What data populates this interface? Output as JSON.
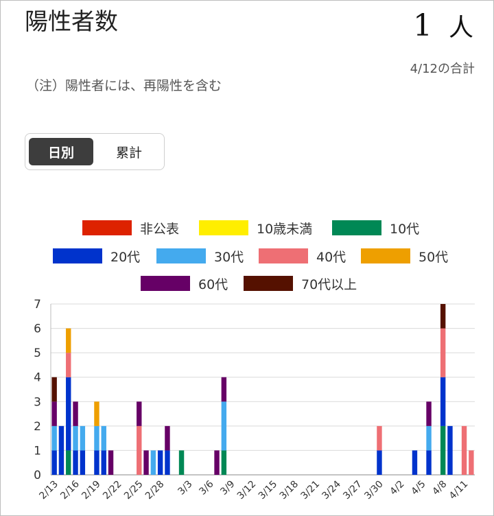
{
  "header": {
    "title": "陽性者数",
    "count": "1",
    "unit": "人",
    "total_label": "4/12の合計",
    "note": "（注）陽性者には、再陽性を含む"
  },
  "toggle": {
    "daily": "日別",
    "cumulative": "累計",
    "selected": "daily"
  },
  "colors": {
    "非公表": "#dd2200",
    "10歳未満": "#ffee00",
    "10代": "#008855",
    "20代": "#0033cc",
    "30代": "#44aaee",
    "40代": "#ee6f74",
    "50代": "#ee9f00",
    "60代": "#660066",
    "70代以上": "#551100"
  },
  "chart_data": {
    "type": "bar",
    "stacked": true,
    "ylim": [
      0,
      7
    ],
    "yticks": [
      "0",
      "1",
      "2",
      "3",
      "4",
      "5",
      "6",
      "7"
    ],
    "grid": true,
    "legend_position": "top",
    "x_tick_labels": [
      "2/13",
      "2/16",
      "2/19",
      "2/22",
      "2/25",
      "2/28",
      "3/3",
      "3/6",
      "3/9",
      "3/12",
      "3/15",
      "3/18",
      "3/21",
      "3/24",
      "3/27",
      "3/30",
      "4/2",
      "4/5",
      "4/8",
      "4/11"
    ],
    "categories": [
      "2/13",
      "2/14",
      "2/15",
      "2/16",
      "2/17",
      "2/18",
      "2/19",
      "2/20",
      "2/21",
      "2/22",
      "2/23",
      "2/24",
      "2/25",
      "2/26",
      "2/27",
      "2/28",
      "2/29",
      "3/1",
      "3/2",
      "3/3",
      "3/4",
      "3/5",
      "3/6",
      "3/7",
      "3/8",
      "3/9",
      "3/10",
      "3/11",
      "3/12",
      "3/13",
      "3/14",
      "3/15",
      "3/16",
      "3/17",
      "3/18",
      "3/19",
      "3/20",
      "3/21",
      "3/22",
      "3/23",
      "3/24",
      "3/25",
      "3/26",
      "3/27",
      "3/28",
      "3/29",
      "3/30",
      "3/31",
      "4/1",
      "4/2",
      "4/3",
      "4/4",
      "4/5",
      "4/6",
      "4/7",
      "4/8",
      "4/9",
      "4/10",
      "4/11",
      "4/12"
    ],
    "series": [
      {
        "name": "非公表",
        "values": [
          0,
          0,
          0,
          0,
          0,
          0,
          0,
          0,
          0,
          0,
          0,
          0,
          0,
          0,
          0,
          0,
          0,
          0,
          0,
          0,
          0,
          0,
          0,
          0,
          0,
          0,
          0,
          0,
          0,
          0,
          0,
          0,
          0,
          0,
          0,
          0,
          0,
          0,
          0,
          0,
          0,
          0,
          0,
          0,
          0,
          0,
          0,
          0,
          0,
          0,
          0,
          0,
          0,
          0,
          0,
          0,
          0,
          0,
          0,
          0
        ]
      },
      {
        "name": "10歳未満",
        "values": [
          0,
          0,
          0,
          0,
          0,
          0,
          0,
          0,
          0,
          0,
          0,
          0,
          0,
          0,
          0,
          0,
          0,
          0,
          0,
          0,
          0,
          0,
          0,
          0,
          0,
          0,
          0,
          0,
          0,
          0,
          0,
          0,
          0,
          0,
          0,
          0,
          0,
          0,
          0,
          0,
          0,
          0,
          0,
          0,
          0,
          0,
          0,
          0,
          0,
          0,
          0,
          0,
          0,
          0,
          0,
          0,
          0,
          0,
          0,
          0
        ]
      },
      {
        "name": "10代",
        "values": [
          0,
          0,
          1,
          0,
          0,
          0,
          0,
          0,
          0,
          0,
          0,
          0,
          0,
          0,
          0,
          0,
          0,
          0,
          1,
          0,
          0,
          0,
          0,
          0,
          1,
          0,
          0,
          0,
          0,
          0,
          0,
          0,
          0,
          0,
          0,
          0,
          0,
          0,
          0,
          0,
          0,
          0,
          0,
          0,
          0,
          0,
          0,
          0,
          0,
          0,
          0,
          0,
          0,
          0,
          0,
          2,
          0,
          0,
          0,
          0
        ]
      },
      {
        "name": "20代",
        "values": [
          1,
          2,
          3,
          1,
          1,
          0,
          1,
          1,
          0,
          0,
          0,
          0,
          0,
          0,
          0,
          1,
          1,
          0,
          0,
          0,
          0,
          0,
          0,
          0,
          0,
          0,
          0,
          0,
          0,
          0,
          0,
          0,
          0,
          0,
          0,
          0,
          0,
          0,
          0,
          0,
          0,
          0,
          0,
          0,
          0,
          0,
          1,
          0,
          0,
          0,
          0,
          1,
          0,
          1,
          0,
          2,
          2,
          0,
          0,
          0
        ]
      },
      {
        "name": "30代",
        "values": [
          1,
          0,
          0,
          1,
          1,
          0,
          1,
          1,
          0,
          0,
          0,
          0,
          0,
          0,
          1,
          0,
          0,
          0,
          0,
          0,
          0,
          0,
          0,
          0,
          2,
          0,
          0,
          0,
          0,
          0,
          0,
          0,
          0,
          0,
          0,
          0,
          0,
          0,
          0,
          0,
          0,
          0,
          0,
          0,
          0,
          0,
          0,
          0,
          0,
          0,
          0,
          0,
          0,
          1,
          0,
          0,
          0,
          0,
          0,
          0
        ]
      },
      {
        "name": "40代",
        "values": [
          0,
          0,
          1,
          0,
          0,
          0,
          0,
          0,
          0,
          0,
          0,
          0,
          2,
          0,
          0,
          0,
          0,
          0,
          0,
          0,
          0,
          0,
          0,
          0,
          0,
          0,
          0,
          0,
          0,
          0,
          0,
          0,
          0,
          0,
          0,
          0,
          0,
          0,
          0,
          0,
          0,
          0,
          0,
          0,
          0,
          0,
          1,
          0,
          0,
          0,
          0,
          0,
          0,
          0,
          0,
          2,
          0,
          0,
          2,
          1
        ]
      },
      {
        "name": "50代",
        "values": [
          0,
          0,
          1,
          0,
          0,
          0,
          1,
          0,
          0,
          0,
          0,
          0,
          0,
          0,
          0,
          0,
          0,
          0,
          0,
          0,
          0,
          0,
          0,
          0,
          0,
          0,
          0,
          0,
          0,
          0,
          0,
          0,
          0,
          0,
          0,
          0,
          0,
          0,
          0,
          0,
          0,
          0,
          0,
          0,
          0,
          0,
          0,
          0,
          0,
          0,
          0,
          0,
          0,
          0,
          0,
          0,
          0,
          0,
          0,
          0
        ]
      },
      {
        "name": "60代",
        "values": [
          1,
          0,
          0,
          1,
          0,
          0,
          0,
          0,
          1,
          0,
          0,
          0,
          1,
          1,
          0,
          0,
          1,
          0,
          0,
          0,
          0,
          0,
          0,
          1,
          1,
          0,
          0,
          0,
          0,
          0,
          0,
          0,
          0,
          0,
          0,
          0,
          0,
          0,
          0,
          0,
          0,
          0,
          0,
          0,
          0,
          0,
          0,
          0,
          0,
          0,
          0,
          0,
          0,
          1,
          0,
          0,
          0,
          0,
          0,
          0
        ]
      },
      {
        "name": "70代以上",
        "values": [
          1,
          0,
          0,
          0,
          0,
          0,
          0,
          0,
          0,
          0,
          0,
          0,
          0,
          0,
          0,
          0,
          0,
          0,
          0,
          0,
          0,
          0,
          0,
          0,
          0,
          0,
          0,
          0,
          0,
          0,
          0,
          0,
          0,
          0,
          0,
          0,
          0,
          0,
          0,
          0,
          0,
          0,
          0,
          0,
          0,
          0,
          0,
          0,
          0,
          0,
          0,
          0,
          0,
          0,
          0,
          1,
          0,
          0,
          0,
          0
        ]
      }
    ]
  }
}
